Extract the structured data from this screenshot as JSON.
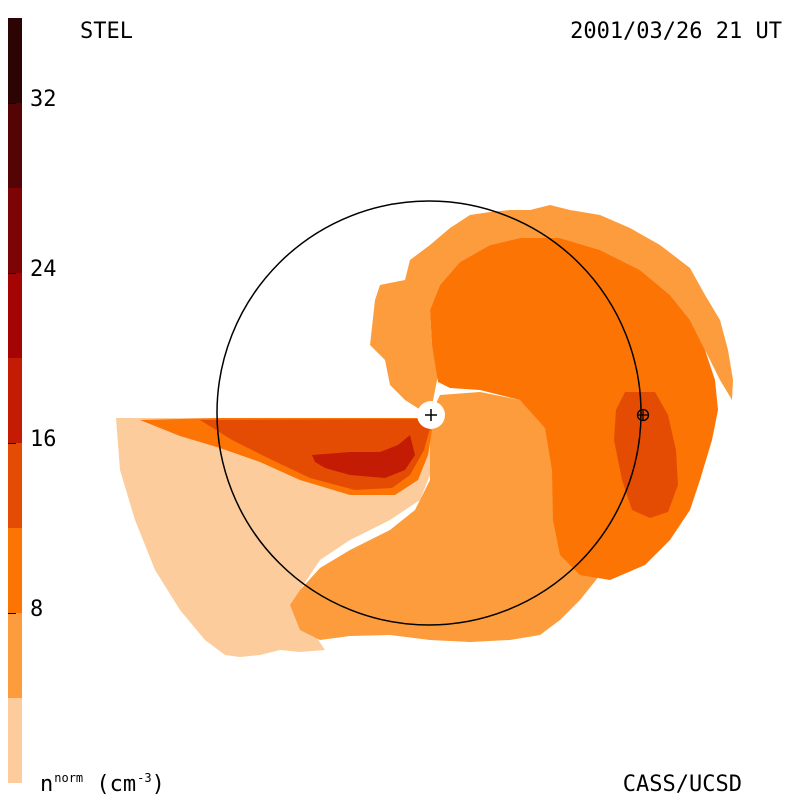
{
  "header": {
    "instrument": "STEL",
    "datetime": "2001/03/26 21 UT"
  },
  "footer": {
    "quantity_base": "n",
    "quantity_superscript": "norm",
    "unit_prefix": "(cm",
    "unit_exponent": "-3",
    "unit_suffix": ")",
    "credit": "CASS/UCSD"
  },
  "colorbar": {
    "tick_labels": [
      "32",
      "24",
      "16",
      "8"
    ],
    "range": [
      0,
      36
    ],
    "colors_bottom_to_top": [
      "#fccc9c",
      "#fc9c3c",
      "#fc7404",
      "#e44c04",
      "#c41c04",
      "#a40404",
      "#7c0404",
      "#540404",
      "#2c0404"
    ],
    "boundaries": [
      0,
      4,
      8,
      12,
      16,
      20,
      24,
      28,
      32,
      36
    ]
  },
  "map": {
    "sun_marker": "sun-plus-icon",
    "earth_marker": "earth-circle-plus-icon",
    "orbit": "earth-orbit-circle"
  }
}
